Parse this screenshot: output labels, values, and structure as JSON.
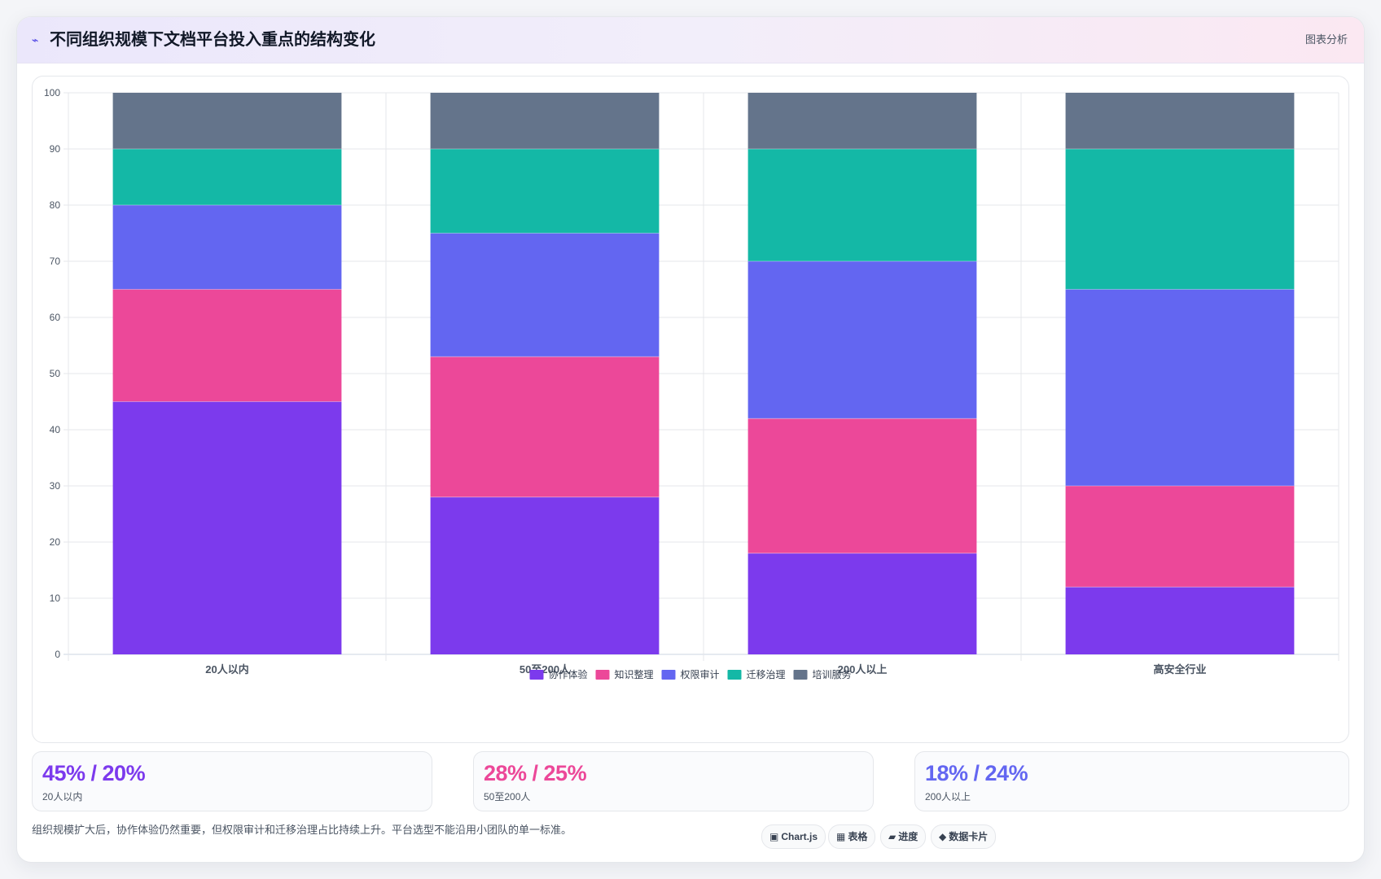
{
  "header": {
    "title": "不同组织规模下文档平台投入重点的结构变化",
    "tag": "图表分析"
  },
  "chart_data": {
    "type": "bar",
    "stacked": true,
    "categories": [
      "20人以内",
      "50至200人",
      "200人以上",
      "高安全行业"
    ],
    "series": [
      {
        "name": "协作体验",
        "color": "#7c3aed",
        "values": [
          45,
          28,
          18,
          12
        ]
      },
      {
        "name": "知识整理",
        "color": "#ec4899",
        "values": [
          20,
          25,
          24,
          18
        ]
      },
      {
        "name": "权限审计",
        "color": "#6366f1",
        "values": [
          15,
          22,
          28,
          35
        ]
      },
      {
        "name": "迁移治理",
        "color": "#14b8a6",
        "values": [
          10,
          15,
          20,
          25
        ]
      },
      {
        "name": "培训服务",
        "color": "#64748b",
        "values": [
          10,
          10,
          10,
          10
        ]
      }
    ],
    "ylim": [
      0,
      100
    ],
    "yticks": [
      0,
      10,
      20,
      30,
      40,
      50,
      60,
      70,
      80,
      90,
      100
    ],
    "grid": true,
    "legend_position": "bottom"
  },
  "stats": [
    {
      "value": "45% / 20%",
      "label": "20人以内",
      "color": "#7c3aed"
    },
    {
      "value": "28% / 25%",
      "label": "50至200人",
      "color": "#ec4899"
    },
    {
      "value": "18% / 24%",
      "label": "200人以上",
      "color": "#6366f1"
    }
  ],
  "note": "组织规模扩大后，协作体验仍然重要，但权限审计和迁移治理占比持续上升。平台选型不能沿用小团队的单一标准。",
  "chips": [
    {
      "icon": "▣",
      "icon_name": "chart-icon",
      "label": "Chart.js"
    },
    {
      "icon": "▦",
      "icon_name": "table-icon",
      "label": "表格"
    },
    {
      "icon": "▰",
      "icon_name": "progress-icon",
      "label": "进度"
    },
    {
      "icon": "◆",
      "icon_name": "card-icon",
      "label": "数据卡片"
    }
  ]
}
